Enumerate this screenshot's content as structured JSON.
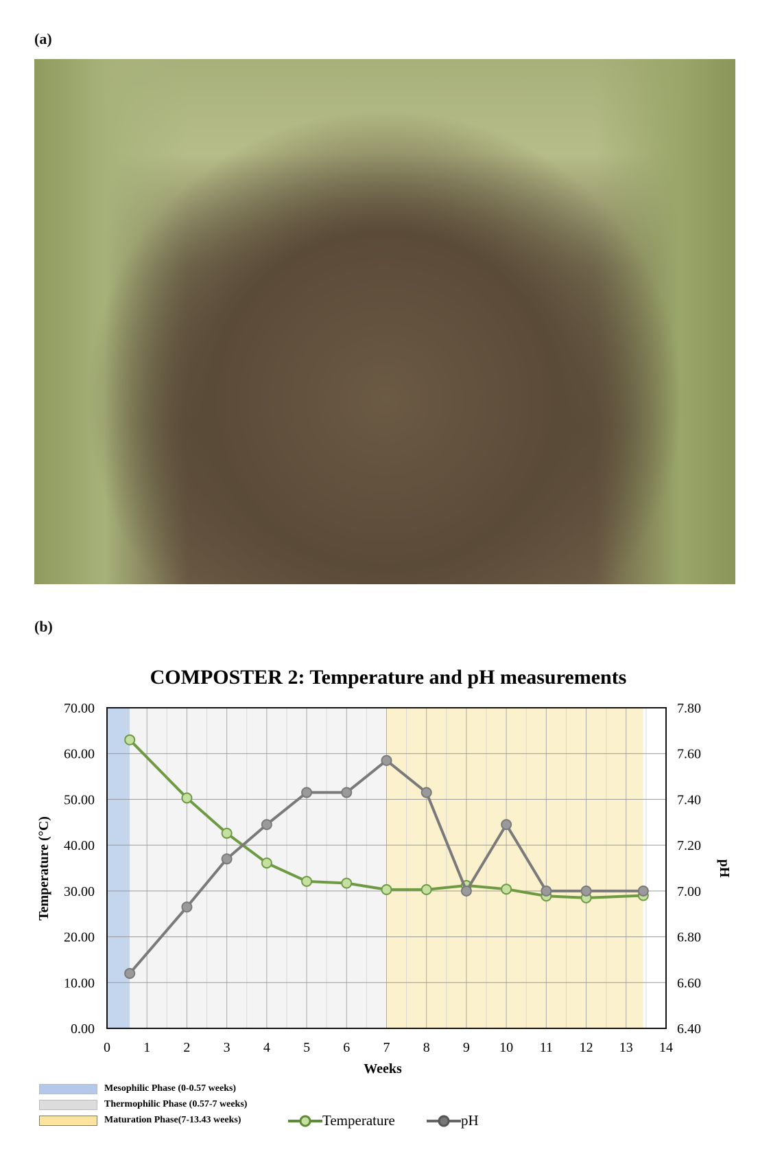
{
  "panels": {
    "a_label": "(a)",
    "b_label": "(b)"
  },
  "photo": {
    "description_icon": "compost-bin-photo"
  },
  "chart_data": {
    "type": "line",
    "title": "COMPOSTER 2: Temperature and pH measurements",
    "xlabel": "Weeks",
    "ylabel": "Temperature (°C)",
    "y2label": "pH",
    "xlim": [
      0,
      14
    ],
    "ylim": [
      0,
      70
    ],
    "y2lim": [
      6.4,
      7.8
    ],
    "x_ticks": [
      "0",
      "1",
      "2",
      "3",
      "4",
      "5",
      "6",
      "7",
      "8",
      "9",
      "10",
      "11",
      "12",
      "13",
      "14"
    ],
    "y_ticks": [
      "0.00",
      "10.00",
      "20.00",
      "30.00",
      "40.00",
      "50.00",
      "60.00",
      "70.00"
    ],
    "y2_ticks": [
      "6.40",
      "6.60",
      "6.80",
      "7.00",
      "7.20",
      "7.40",
      "7.60",
      "7.80"
    ],
    "grid": true,
    "x": [
      0.57,
      2,
      3,
      4,
      5,
      6,
      7,
      8,
      9,
      10,
      11,
      12,
      13.43
    ],
    "series": [
      {
        "name": "Temperature",
        "axis": "left",
        "color": "#6e9a44",
        "marker": "#c5e0a0",
        "values": [
          63.0,
          50.3,
          42.6,
          36.1,
          32.1,
          31.7,
          30.3,
          30.3,
          31.2,
          30.4,
          28.9,
          28.5,
          29.0
        ]
      },
      {
        "name": "pH",
        "axis": "right",
        "color": "#7a7a7a",
        "marker": "#9a9a9a",
        "values": [
          6.64,
          6.93,
          7.14,
          7.29,
          7.43,
          7.43,
          7.57,
          7.43,
          7.0,
          7.29,
          7.0,
          7.0,
          7.0
        ]
      }
    ],
    "phases": [
      {
        "name": "Mesophilic Phase (0-0.57 weeks)",
        "start": 0,
        "end": 0.57,
        "color": "#c3d6ee"
      },
      {
        "name": "Thermophilic Phase (0.57-7 weeks)",
        "start": 0.57,
        "end": 7,
        "color": "#f4f4f4"
      },
      {
        "name": "Maturation Phase(7-13.43 weeks)",
        "start": 7,
        "end": 13.43,
        "color": "#fbf1cc"
      }
    ],
    "legend": "bottom"
  }
}
